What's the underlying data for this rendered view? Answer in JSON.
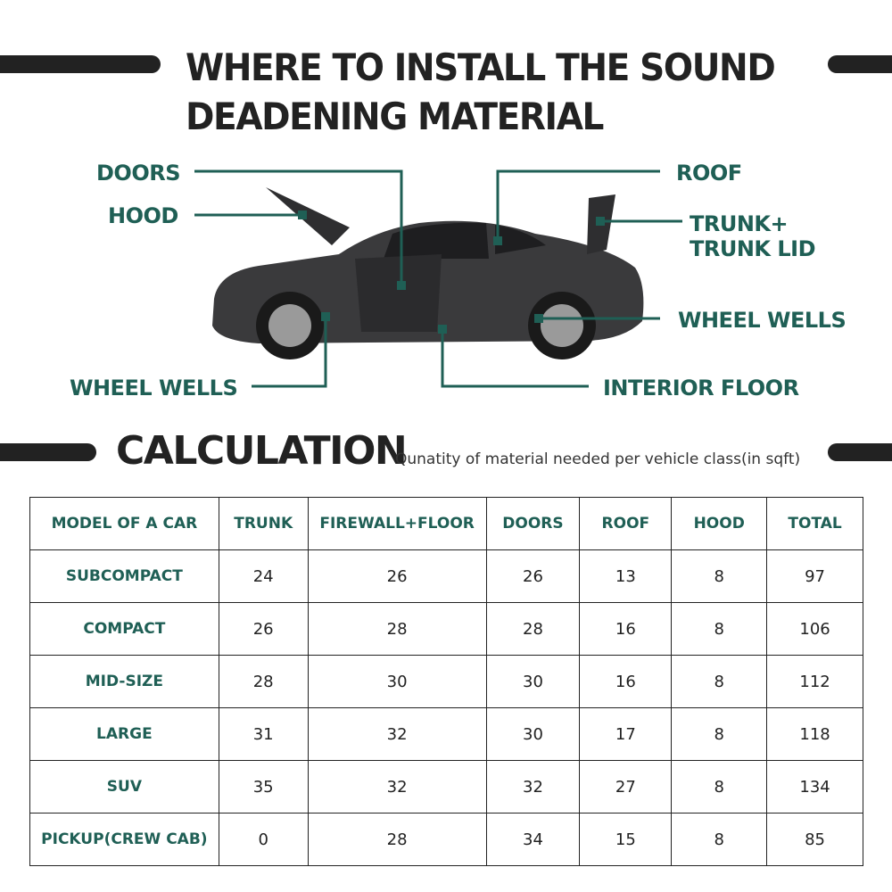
{
  "header": {
    "title_line1": "WHERE TO INSTALL THE SOUND",
    "title_line2": "DEADENING MATERIAL"
  },
  "diagram": {
    "labels": {
      "doors": "DOORS",
      "hood": "HOOD",
      "roof": "ROOF",
      "trunk": "TRUNK+",
      "trunk2": "TRUNK LID",
      "wheel_wells_right": "WHEEL WELLS",
      "wheel_wells_left": "WHEEL WELLS",
      "interior_floor": "INTERIOR FLOOR"
    },
    "accent_color": "#1f5f55"
  },
  "calculation": {
    "title": "CALCULATION",
    "subtitle": "Qunatity of material needed per vehicle class(in sqft)"
  },
  "table": {
    "headers": [
      "MODEL OF A CAR",
      "TRUNK",
      "FIREWALL+FLOOR",
      "DOORS",
      "ROOF",
      "HOOD",
      "TOTAL"
    ],
    "rows": [
      [
        "SUBCOMPACT",
        "24",
        "26",
        "26",
        "13",
        "8",
        "97"
      ],
      [
        "COMPACT",
        "26",
        "28",
        "28",
        "16",
        "8",
        "106"
      ],
      [
        "MID-SIZE",
        "28",
        "30",
        "30",
        "16",
        "8",
        "112"
      ],
      [
        "LARGE",
        "31",
        "32",
        "30",
        "17",
        "8",
        "118"
      ],
      [
        "SUV",
        "35",
        "32",
        "32",
        "27",
        "8",
        "134"
      ],
      [
        "PICKUP(CREW CAB)",
        "0",
        "28",
        "34",
        "15",
        "8",
        "85"
      ]
    ]
  }
}
